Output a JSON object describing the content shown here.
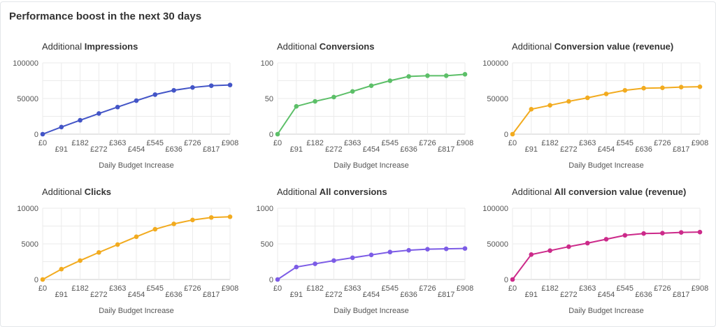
{
  "page": {
    "title": "Performance boost in the next 30 days"
  },
  "chart_data": [
    {
      "type": "line",
      "title_prefix": "Additional",
      "title_metric": "Impressions",
      "xlabel": "Daily Budget Increase",
      "categories": [
        "£0",
        "£91",
        "£182",
        "£272",
        "£363",
        "£454",
        "£545",
        "£636",
        "£726",
        "£817",
        "£908"
      ],
      "ylim": [
        0,
        100000
      ],
      "yticks": [
        0,
        50000,
        100000
      ],
      "color": "#4355c7",
      "values": [
        0,
        10000,
        19500,
        29000,
        38000,
        47000,
        55500,
        61500,
        65500,
        68000,
        69000
      ],
      "grid": true
    },
    {
      "type": "line",
      "title_prefix": "Additional",
      "title_metric": "Conversions",
      "xlabel": "Daily Budget Increase",
      "categories": [
        "£0",
        "£91",
        "£182",
        "£272",
        "£363",
        "£454",
        "£545",
        "£636",
        "£726",
        "£817",
        "£908"
      ],
      "ylim": [
        0,
        100
      ],
      "yticks": [
        0,
        50,
        100
      ],
      "color": "#5cbf68",
      "values": [
        0,
        39,
        46,
        52,
        60,
        68,
        75,
        81,
        82,
        82,
        84
      ],
      "grid": true
    },
    {
      "type": "line",
      "title_prefix": "Additional",
      "title_metric": "Conversion value (revenue)",
      "xlabel": "Daily Budget Increase",
      "categories": [
        "£0",
        "£91",
        "£182",
        "£272",
        "£363",
        "£454",
        "£545",
        "£636",
        "£726",
        "£817",
        "£908"
      ],
      "ylim": [
        0,
        100000
      ],
      "yticks": [
        0,
        50000,
        100000
      ],
      "color": "#f2ab1f",
      "values": [
        0,
        35000,
        40500,
        46000,
        51000,
        56500,
        61500,
        64500,
        65000,
        66000,
        66500
      ],
      "grid": true
    },
    {
      "type": "line",
      "title_prefix": "Additional",
      "title_metric": "Clicks",
      "xlabel": "Daily Budget Increase",
      "categories": [
        "£0",
        "£91",
        "£182",
        "£272",
        "£363",
        "£454",
        "£545",
        "£636",
        "£726",
        "£817",
        "£908"
      ],
      "ylim": [
        0,
        10000
      ],
      "yticks": [
        0,
        5000,
        10000
      ],
      "color": "#f2ab1f",
      "values": [
        0,
        1450,
        2650,
        3800,
        4900,
        6000,
        7050,
        7800,
        8350,
        8700,
        8800
      ],
      "grid": true
    },
    {
      "type": "line",
      "title_prefix": "Additional",
      "title_metric": "All conversions",
      "xlabel": "Daily Budget Increase",
      "categories": [
        "£0",
        "£91",
        "£182",
        "£272",
        "£363",
        "£454",
        "£545",
        "£636",
        "£726",
        "£817",
        "£908"
      ],
      "ylim": [
        0,
        1000
      ],
      "yticks": [
        0,
        500,
        1000
      ],
      "color": "#7c5ce6",
      "values": [
        0,
        175,
        220,
        265,
        305,
        345,
        385,
        410,
        425,
        430,
        435
      ],
      "grid": true
    },
    {
      "type": "line",
      "title_prefix": "Additional",
      "title_metric": "All conversion value (revenue)",
      "xlabel": "Daily Budget Increase",
      "categories": [
        "£0",
        "£91",
        "£182",
        "£272",
        "£363",
        "£454",
        "£545",
        "£636",
        "£726",
        "£817",
        "£908"
      ],
      "ylim": [
        0,
        100000
      ],
      "yticks": [
        0,
        50000,
        100000
      ],
      "color": "#cc2a8a",
      "values": [
        0,
        35000,
        40500,
        46000,
        51000,
        56500,
        62000,
        64500,
        65000,
        66000,
        66500
      ],
      "grid": true
    }
  ]
}
